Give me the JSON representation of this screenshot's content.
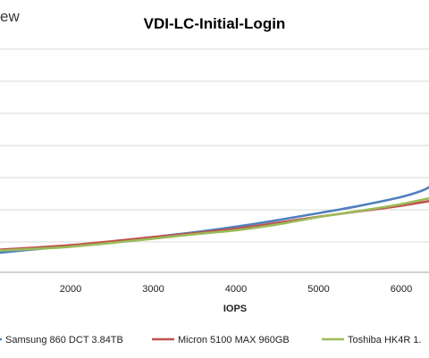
{
  "brand_fragment": "ew",
  "chart_data": {
    "type": "line",
    "title": "VDI-LC-Initial-Login",
    "xlabel": "IOPS",
    "ylabel": "",
    "x_ticks": [
      2000,
      3000,
      4000,
      5000,
      6000
    ],
    "grid": true,
    "legend_position": "bottom",
    "series": [
      {
        "name": "Samsung 860 DCT 3.84TB",
        "color": "#4f81bd",
        "x": [
          850,
          1200,
          1600,
          2000,
          2500,
          3000,
          3500,
          4000,
          4500,
          5000,
          5500,
          6000,
          6300,
          6450
        ],
        "y": [
          1.12,
          1.22,
          1.32,
          1.42,
          1.55,
          1.69,
          1.84,
          2.01,
          2.21,
          2.43,
          2.66,
          2.93,
          3.18,
          3.48
        ]
      },
      {
        "name": "Micron 5100 MAX 960GB",
        "color": "#c0504d",
        "x": [
          850,
          1200,
          1600,
          2000,
          2500,
          3000,
          3500,
          4000,
          4500,
          5000,
          5500,
          6000,
          6450
        ],
        "y": [
          1.25,
          1.31,
          1.37,
          1.44,
          1.56,
          1.69,
          1.81,
          1.95,
          2.13,
          2.32,
          2.49,
          2.66,
          2.85
        ]
      },
      {
        "name": "Toshiba HK4R 1.",
        "color": "#9bbb59",
        "x": [
          850,
          1200,
          1600,
          2000,
          2500,
          3000,
          3500,
          4000,
          4500,
          5000,
          5500,
          6000,
          6450
        ],
        "y": [
          1.22,
          1.28,
          1.33,
          1.39,
          1.51,
          1.64,
          1.78,
          1.9,
          2.08,
          2.31,
          2.5,
          2.71,
          2.95
        ]
      }
    ]
  }
}
